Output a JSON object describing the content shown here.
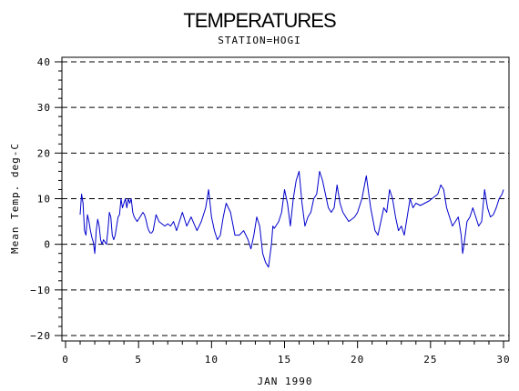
{
  "chart_data": {
    "type": "line",
    "title": "TEMPERATURES",
    "subtitle": "STATION=HOGI",
    "xlabel": "JAN 1990",
    "ylabel": "Mean Temp. deg-C",
    "xlim": [
      0,
      30
    ],
    "ylim": [
      -20,
      40
    ],
    "x_ticks": [
      0,
      5,
      10,
      15,
      20,
      25,
      30
    ],
    "y_ticks": [
      -20,
      -10,
      0,
      10,
      20,
      30,
      40
    ],
    "grid": "horizontal dashed",
    "line_color": "#0000cc",
    "series": [
      {
        "x": [
          1.0,
          1.1,
          1.2,
          1.3,
          1.4,
          1.5,
          1.6,
          1.7,
          1.8,
          1.9,
          2.0,
          2.1,
          2.2,
          2.3,
          2.4,
          2.5,
          2.6,
          2.7,
          2.8,
          2.9,
          3.0,
          3.1,
          3.2,
          3.3,
          3.4,
          3.5,
          3.6,
          3.7,
          3.8,
          3.9,
          4.0,
          4.1,
          4.2,
          4.3,
          4.4,
          4.5,
          4.6,
          4.7,
          4.8,
          4.9,
          5.0,
          5.1,
          5.2,
          5.3,
          5.4,
          5.5,
          5.6,
          5.7,
          5.8,
          5.9,
          6.0,
          6.2,
          6.4,
          6.6,
          6.8,
          7.0,
          7.2,
          7.4,
          7.6,
          7.8,
          8.0,
          8.3,
          8.6,
          9.0,
          9.3,
          9.6,
          9.8,
          10.0,
          10.2,
          10.4,
          10.6,
          10.8,
          11.0,
          11.3,
          11.6,
          11.9,
          12.2,
          12.5,
          12.7,
          12.9,
          13.1,
          13.3,
          13.5,
          13.7,
          13.9,
          14.1,
          14.2,
          14.3,
          14.4,
          14.6,
          14.8,
          15.0,
          15.2,
          15.4,
          15.5,
          15.6,
          15.8,
          16.0,
          16.2,
          16.4,
          16.6,
          16.8,
          17.0,
          17.2,
          17.4,
          17.6,
          17.8,
          18.0,
          18.2,
          18.4,
          18.6,
          18.8,
          19.0,
          19.2,
          19.4,
          19.6,
          19.8,
          20.0,
          20.3,
          20.6,
          20.9,
          21.2,
          21.4,
          21.6,
          21.8,
          22.0,
          22.2,
          22.4,
          22.6,
          22.8,
          23.0,
          23.2,
          23.4,
          23.6,
          23.8,
          24.0,
          24.3,
          24.6,
          24.9,
          25.1,
          25.3,
          25.5,
          25.7,
          25.9,
          26.1,
          26.3,
          26.5,
          26.7,
          26.9,
          27.1,
          27.2,
          27.3,
          27.5,
          27.7,
          27.9,
          28.1,
          28.3,
          28.5,
          28.7,
          28.9,
          29.1,
          29.3,
          29.5,
          29.7,
          29.9,
          30.0
        ],
        "y": [
          6.5,
          11,
          9,
          3,
          2,
          6.5,
          5,
          3,
          1.5,
          0.5,
          -2,
          3,
          5.5,
          4,
          1,
          0,
          1,
          0.5,
          0,
          3,
          7,
          6,
          2,
          1,
          2,
          4,
          6,
          6.5,
          10,
          8,
          9,
          10,
          8,
          10,
          9,
          10,
          7,
          6,
          5.5,
          5,
          5.5,
          6,
          6.5,
          7,
          6.5,
          5.5,
          4,
          3,
          2.5,
          2.5,
          3,
          6.5,
          5,
          4.5,
          4,
          4.5,
          4,
          5,
          3,
          5,
          7,
          4,
          6,
          3,
          5,
          8,
          12,
          6,
          3,
          1,
          2,
          6,
          9,
          7,
          2,
          2,
          3,
          1,
          -1,
          2,
          6,
          4,
          -2,
          -4,
          -5,
          0,
          4,
          3.5,
          4,
          5,
          7,
          12,
          9,
          4,
          7,
          10,
          14,
          16,
          9,
          4,
          6,
          7,
          10,
          11,
          16,
          14,
          11,
          8,
          7,
          8,
          13,
          9,
          7,
          6,
          5,
          5.5,
          6,
          7,
          10,
          15,
          8,
          3,
          2,
          5,
          8,
          7,
          12,
          10,
          6,
          3,
          4,
          2,
          6,
          10,
          8,
          9,
          8.5,
          9,
          9.5,
          10,
          10.5,
          11,
          13,
          12,
          8,
          6,
          4,
          5,
          6,
          2,
          -2,
          0,
          5,
          6,
          8,
          6,
          4,
          5,
          12,
          8,
          6,
          6.5,
          8,
          10,
          11,
          12
        ]
      }
    ]
  }
}
